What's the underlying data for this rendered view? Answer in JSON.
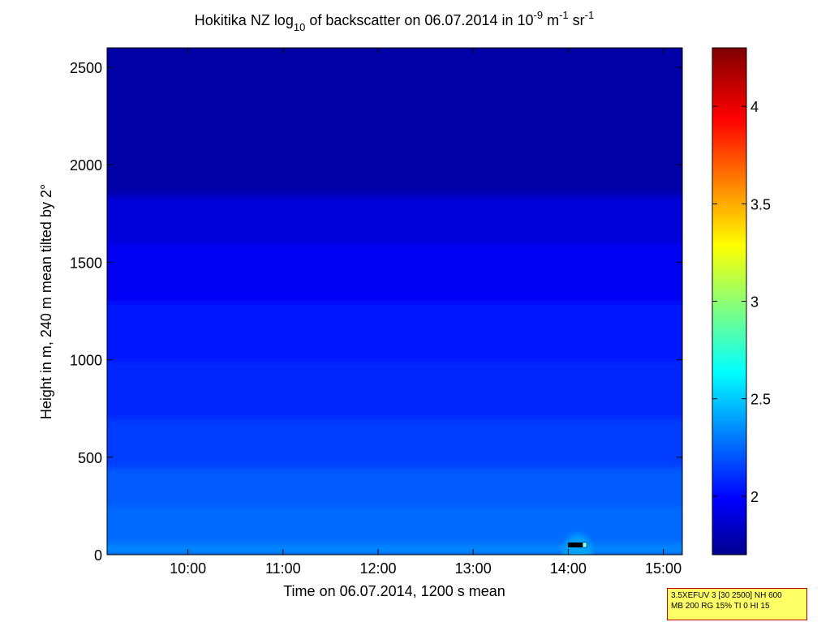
{
  "chart_data": {
    "type": "heatmap",
    "title": {
      "prefix": "Hokitika NZ log",
      "sub": "10",
      "middle": " of backscatter on 06.07.2014 in 10",
      "sup1": "-9",
      "unit1": " m",
      "sup2": "-1",
      "unit2": " sr",
      "sup3": "-1"
    },
    "xlabel": "Time on 06.07.2014, 1200 s mean",
    "ylabel": "Height in m, 240 m mean tilted by 2°",
    "x_ticks": [
      "10:00",
      "11:00",
      "12:00",
      "13:00",
      "14:00",
      "15:00"
    ],
    "x_tick_hours": [
      10,
      11,
      12,
      13,
      14,
      15
    ],
    "xlim_hours": [
      9.15,
      15.2
    ],
    "y_ticks": [
      0,
      500,
      1000,
      1500,
      2000,
      2500
    ],
    "ylim": [
      0,
      2600
    ],
    "colorbar": {
      "ticks": [
        2,
        2.5,
        3,
        3.5,
        4
      ],
      "tick_labels": [
        "2",
        "2.5",
        "3",
        "3.5",
        "4"
      ],
      "range": [
        1.7,
        4.3
      ],
      "colormap": "jet"
    },
    "profile_layers": [
      {
        "height_from": 0,
        "height_to": 60,
        "value": 2.37
      },
      {
        "height_from": 60,
        "height_to": 250,
        "value": 2.3
      },
      {
        "height_from": 250,
        "height_to": 450,
        "value": 2.26
      },
      {
        "height_from": 450,
        "height_to": 700,
        "value": 2.18
      },
      {
        "height_from": 700,
        "height_to": 1000,
        "value": 2.12
      },
      {
        "height_from": 1000,
        "height_to": 1300,
        "value": 2.07
      },
      {
        "height_from": 1300,
        "height_to": 1600,
        "value": 2.0
      },
      {
        "height_from": 1600,
        "height_to": 1850,
        "value": 1.93
      },
      {
        "height_from": 1850,
        "height_to": 2600,
        "value": 1.8
      }
    ],
    "surface_feature": {
      "time_hours": 14.1,
      "height": 50,
      "value": 2.45
    },
    "grid": false
  },
  "info_box": {
    "line1": "3.5XEFUV 3 [30 2500] NH 600",
    "line2": "MB 200 RG 15% TI 0 HI 15"
  },
  "colors": {
    "info_bg": "#ffff66",
    "info_border": "#c00000"
  }
}
